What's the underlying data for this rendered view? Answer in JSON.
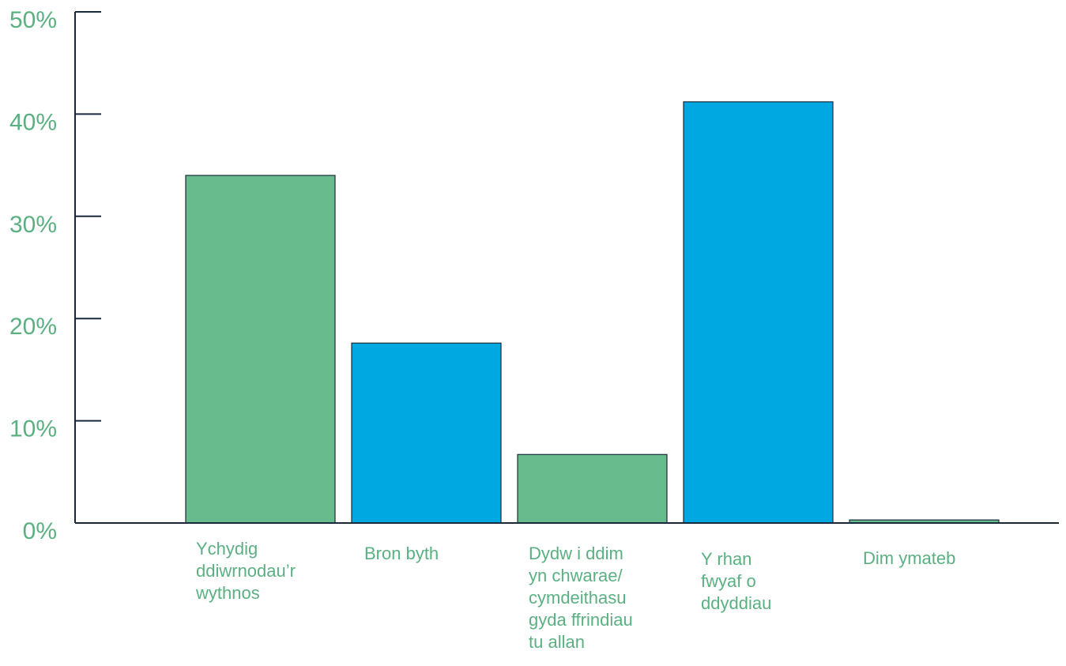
{
  "chart_data": {
    "type": "bar",
    "title": "",
    "xlabel": "",
    "ylabel": "",
    "ylim": [
      0,
      50
    ],
    "y_ticks": [
      0,
      10,
      20,
      30,
      40,
      50
    ],
    "y_tick_labels": [
      "0%",
      "10%",
      "20%",
      "30%",
      "40%",
      "50%"
    ],
    "grid": false,
    "legend": "none",
    "categories": [
      [
        "Ychydig",
        "ddiwrnodau’r",
        "wythnos"
      ],
      [
        "Bron byth"
      ],
      [
        "Dydw i ddim",
        "yn chwarae/",
        "cymdeithasu",
        "gyda ffrindiau",
        "tu allan"
      ],
      [
        "Y rhan",
        "fwyaf o",
        "ddyddiau"
      ],
      [
        "Dim ymateb"
      ]
    ],
    "values": [
      34,
      17.6,
      6.7,
      41.2,
      0.3
    ],
    "bar_colors": [
      "#68bb8c",
      "#00a8e1",
      "#68bb8c",
      "#00a8e1",
      "#68bb8c"
    ]
  },
  "colors": {
    "axis": "#1b2a3a",
    "label_text": "#5bb082",
    "bar_outline": "#1b2a3a"
  }
}
